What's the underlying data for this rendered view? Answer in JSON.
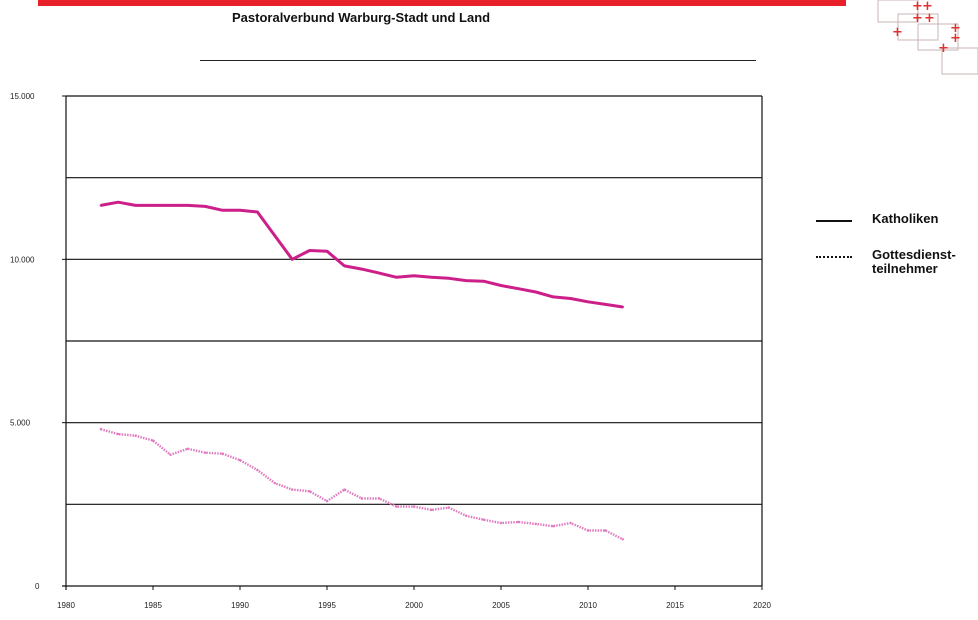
{
  "header": {
    "title": "Pastoralverbund Warburg-Stadt und Land"
  },
  "colors": {
    "accent_bar": "#e8202a",
    "katholiken": "#cc1f8a",
    "gottesdienst": "#e07ac0",
    "logo_cross": "#e03030"
  },
  "legend": {
    "items": [
      {
        "label": "Katholiken",
        "style": "solid"
      },
      {
        "label": "Gottesdienst-teilnehmer",
        "style": "dotted"
      }
    ]
  },
  "chart_data": {
    "type": "line",
    "title": "",
    "xlabel": "",
    "ylabel": "",
    "xlim": [
      1980,
      2020
    ],
    "ylim": [
      0,
      15000
    ],
    "grid": true,
    "legend_position": "right",
    "x_ticks": [
      "1980",
      "1985",
      "1990",
      "1995",
      "2000",
      "2005",
      "2010",
      "2015",
      "2020"
    ],
    "y_ticks": [
      "0",
      "5.000",
      "10.000",
      "15.000"
    ],
    "series": [
      {
        "name": "Katholiken",
        "style": "solid",
        "x": [
          1982,
          1983,
          1984,
          1985,
          1986,
          1987,
          1988,
          1989,
          1990,
          1991,
          1993,
          1994,
          1995,
          1996,
          1997,
          1998,
          1999,
          2000,
          2001,
          2002,
          2003,
          2004,
          2005,
          2006,
          2007,
          2008,
          2009,
          2010,
          2011,
          2012
        ],
        "values": [
          11650,
          11750,
          11650,
          11650,
          11650,
          11650,
          11620,
          11500,
          11500,
          11450,
          10000,
          10270,
          10250,
          9800,
          9700,
          9580,
          9450,
          9500,
          9450,
          9420,
          9350,
          9330,
          9200,
          9100,
          9000,
          8850,
          8800,
          8700,
          8620,
          8540
        ]
      },
      {
        "name": "Gottesdienstteilnehmer",
        "style": "dotted",
        "x": [
          1982,
          1983,
          1984,
          1985,
          1986,
          1987,
          1988,
          1989,
          1990,
          1991,
          1992,
          1993,
          1994,
          1995,
          1996,
          1997,
          1998,
          1999,
          2000,
          2001,
          2002,
          2003,
          2004,
          2005,
          2006,
          2007,
          2008,
          2009,
          2010,
          2011,
          2012
        ],
        "values": [
          4800,
          4650,
          4600,
          4450,
          4020,
          4200,
          4080,
          4050,
          3850,
          3550,
          3150,
          2950,
          2900,
          2600,
          2950,
          2680,
          2680,
          2430,
          2430,
          2330,
          2400,
          2150,
          2030,
          1930,
          1960,
          1900,
          1830,
          1930,
          1700,
          1700,
          1430
        ]
      }
    ]
  }
}
